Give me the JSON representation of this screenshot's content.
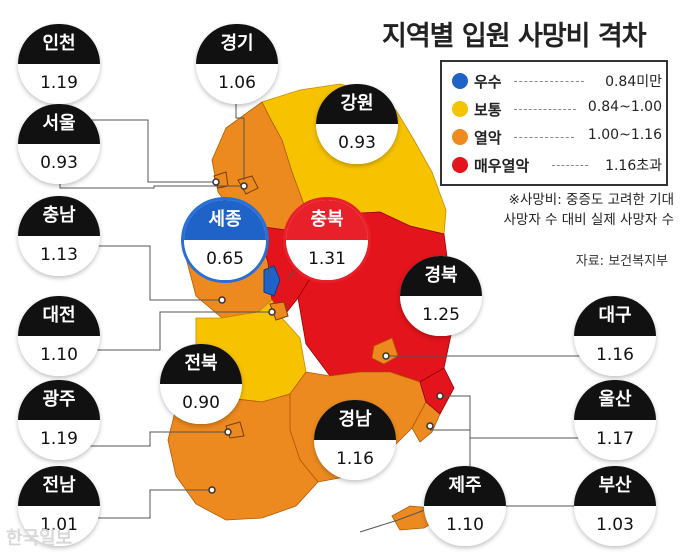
{
  "title": "지역별 입원 사망비 격차",
  "legend": [
    {
      "name": "우수",
      "range": "0.84미만",
      "color": "#1f63c9"
    },
    {
      "name": "보통",
      "range": "0.84~1.00",
      "color": "#f5c400"
    },
    {
      "name": "열악",
      "range": "1.00~1.16",
      "color": "#ee8a1e"
    },
    {
      "name": "매우열악",
      "range": "1.16초과",
      "color": "#e3141b"
    }
  ],
  "note_line1": "※사망비: 중증도 고려한 기대",
  "note_line2": "사망자 수 대비 실제 사망자 수",
  "source": "자료: 보건복지부",
  "watermark": "한국일보",
  "regions": {
    "incheon": {
      "name": "인천",
      "value": "1.19"
    },
    "gyeonggi": {
      "name": "경기",
      "value": "1.06"
    },
    "gangwon": {
      "name": "강원",
      "value": "0.93"
    },
    "seoul": {
      "name": "서울",
      "value": "0.93"
    },
    "chungnam": {
      "name": "충남",
      "value": "1.13"
    },
    "sejong": {
      "name": "세종",
      "value": "0.65"
    },
    "chungbuk": {
      "name": "충북",
      "value": "1.31"
    },
    "gyeongbuk": {
      "name": "경북",
      "value": "1.25"
    },
    "daejeon": {
      "name": "대전",
      "value": "1.10"
    },
    "daegu": {
      "name": "대구",
      "value": "1.16"
    },
    "jeonbuk": {
      "name": "전북",
      "value": "0.90"
    },
    "gwangju": {
      "name": "광주",
      "value": "1.19"
    },
    "ulsan": {
      "name": "울산",
      "value": "1.17"
    },
    "gyeongnam": {
      "name": "경남",
      "value": "1.16"
    },
    "jeonnam": {
      "name": "전남",
      "value": "1.01"
    },
    "jeju": {
      "name": "제주",
      "value": "1.10"
    },
    "busan": {
      "name": "부산",
      "value": "1.03"
    }
  }
}
